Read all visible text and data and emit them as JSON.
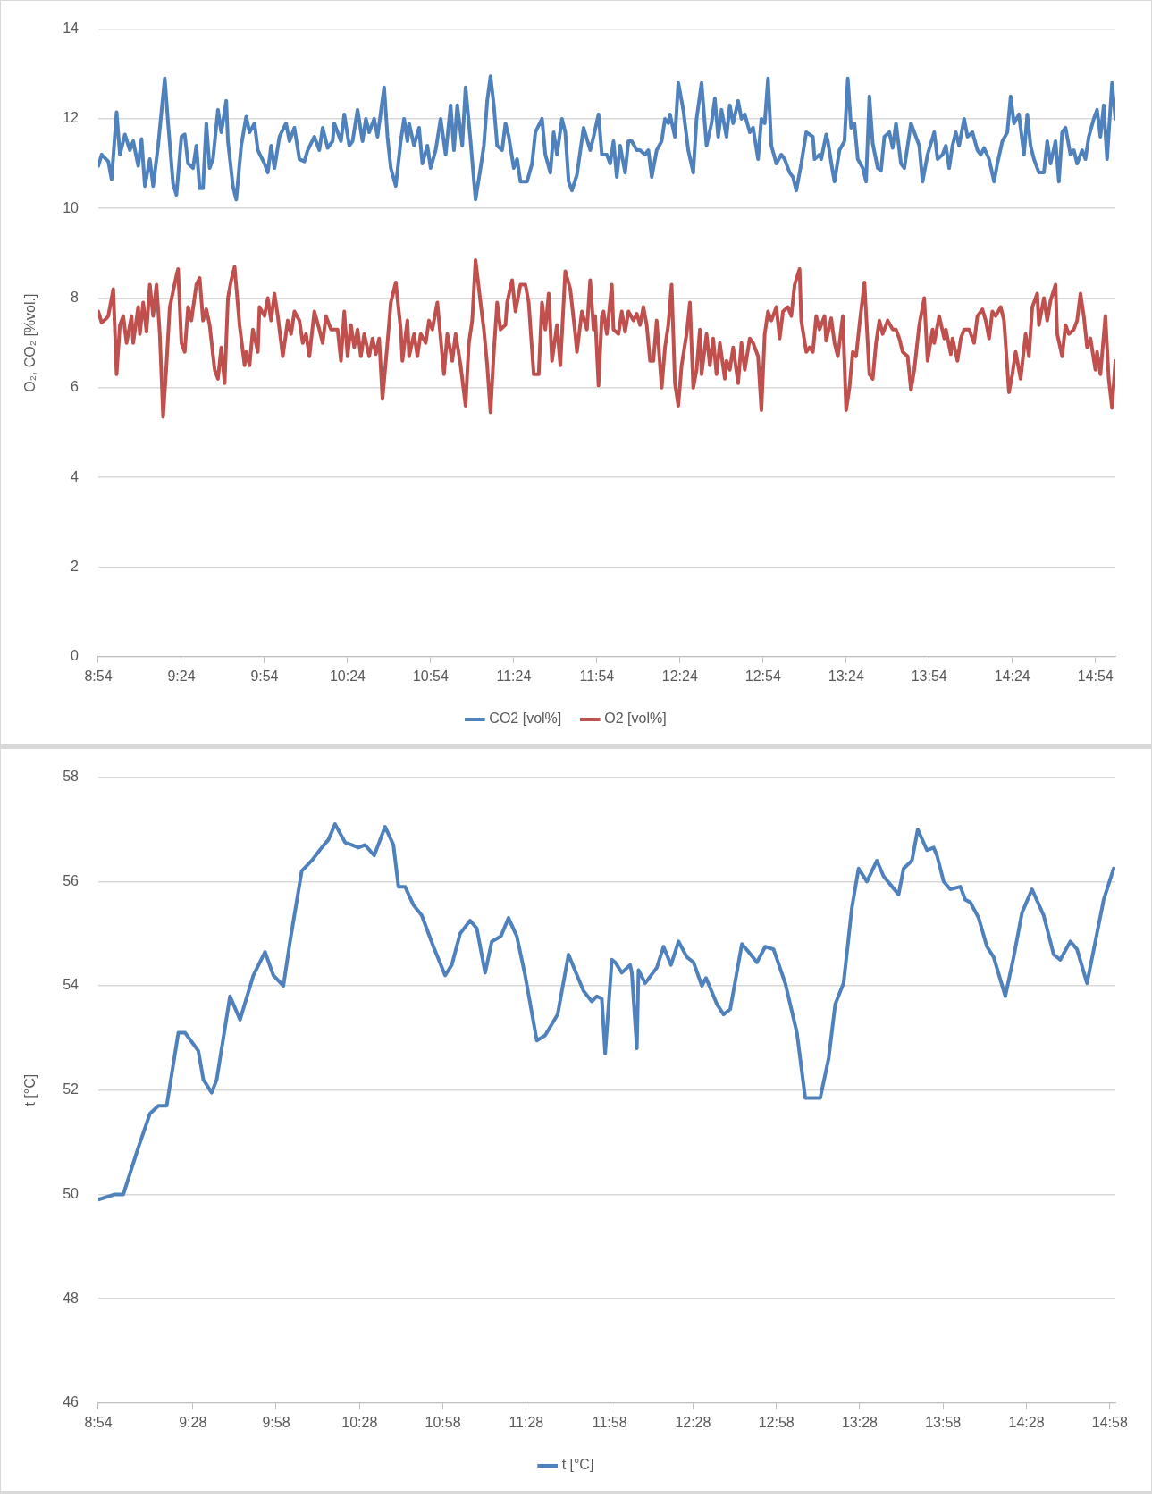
{
  "chart_data": [
    {
      "type": "line",
      "ylabel": "O₂, CO₂ [%vol.]",
      "xlim": [
        8.9,
        15.02
      ],
      "ylim": [
        0,
        14
      ],
      "yticks": [
        0,
        2,
        4,
        6,
        8,
        10,
        12,
        14
      ],
      "xticks": [
        {
          "value": 8.9,
          "label": "8:54"
        },
        {
          "value": 9.4,
          "label": "9:24"
        },
        {
          "value": 9.9,
          "label": "9:54"
        },
        {
          "value": 10.4,
          "label": "10:24"
        },
        {
          "value": 10.9,
          "label": "10:54"
        },
        {
          "value": 11.4,
          "label": "11:24"
        },
        {
          "value": 11.9,
          "label": "11:54"
        },
        {
          "value": 12.4,
          "label": "12:24"
        },
        {
          "value": 12.9,
          "label": "12:54"
        },
        {
          "value": 13.4,
          "label": "13:24"
        },
        {
          "value": 13.9,
          "label": "13:54"
        },
        {
          "value": 14.4,
          "label": "14:24"
        },
        {
          "value": 14.9,
          "label": "14:54"
        }
      ],
      "grid": "y",
      "legend": "bottom",
      "marker": "none",
      "line_style": "solid",
      "series": [
        {
          "name": "CO2 [vol%]",
          "color": "#4f81bd",
          "x": [
            8.9,
            8.92,
            8.96,
            8.98,
            9.01,
            9.03,
            9.06,
            9.09,
            9.11,
            9.14,
            9.16,
            9.18,
            9.21,
            9.23,
            9.26,
            9.3,
            9.32,
            9.35,
            9.37,
            9.4,
            9.42,
            9.44,
            9.47,
            9.49,
            9.51,
            9.53,
            9.55,
            9.57,
            9.59,
            9.62,
            9.64,
            9.67,
            9.68,
            9.71,
            9.73,
            9.76,
            9.79,
            9.81,
            9.84,
            9.86,
            9.9,
            9.92,
            9.94,
            9.96,
            9.99,
            10.03,
            10.05,
            10.08,
            10.11,
            10.14,
            10.16,
            10.2,
            10.23,
            10.25,
            10.28,
            10.31,
            10.32,
            10.36,
            10.38,
            10.41,
            10.43,
            10.46,
            10.49,
            10.51,
            10.53,
            10.56,
            10.58,
            10.62,
            10.64,
            10.66,
            10.69,
            10.72,
            10.74,
            10.76,
            10.77,
            10.8,
            10.83,
            10.85,
            10.88,
            10.9,
            10.93,
            10.96,
            10.99,
            11.02,
            11.04,
            11.06,
            11.09,
            11.11,
            11.14,
            11.17,
            11.2,
            11.22,
            11.24,
            11.26,
            11.28,
            11.3,
            11.33,
            11.35,
            11.37,
            11.4,
            11.42,
            11.44,
            11.48,
            11.51,
            11.53,
            11.57,
            11.59,
            11.62,
            11.64,
            11.66,
            11.69,
            11.71,
            11.73,
            11.75,
            11.78,
            11.82,
            11.84,
            11.86,
            11.88,
            11.91,
            11.93,
            11.96,
            11.98,
            12.0,
            12.02,
            12.04,
            12.07,
            12.09,
            12.11,
            12.14,
            12.16,
            12.19,
            12.21,
            12.23,
            12.26,
            12.29,
            12.31,
            12.33,
            12.34,
            12.37,
            12.39,
            12.42,
            12.45,
            12.48,
            12.5,
            12.53,
            12.56,
            12.59,
            12.61,
            12.63,
            12.65,
            12.68,
            12.7,
            12.72,
            12.75,
            12.77,
            12.79,
            12.82,
            12.84,
            12.87,
            12.89,
            12.91,
            12.93,
            12.95,
            12.98,
            13.01,
            13.03,
            13.06,
            13.08,
            13.1,
            13.13,
            13.16,
            13.2,
            13.21,
            13.24,
            13.25,
            13.28,
            13.29,
            13.32,
            13.33,
            13.36,
            13.39,
            13.41,
            13.43,
            13.45,
            13.47,
            13.5,
            13.52,
            13.54,
            13.56,
            13.59,
            13.61,
            13.63,
            13.66,
            13.68,
            13.7,
            13.73,
            13.75,
            13.77,
            13.79,
            13.81,
            13.84,
            13.86,
            13.89,
            13.93,
            13.95,
            13.98,
            14.0,
            14.02,
            14.04,
            14.06,
            14.08,
            14.11,
            14.13,
            14.16,
            14.19,
            14.21,
            14.23,
            14.26,
            14.29,
            14.31,
            14.34,
            14.37,
            14.39,
            14.41,
            14.44,
            14.47,
            14.49,
            14.51,
            14.53,
            14.56,
            14.59,
            14.61,
            14.63,
            14.66,
            14.68,
            14.7,
            14.72,
            14.75,
            14.77,
            14.79,
            14.82,
            14.84,
            14.86,
            14.89,
            14.91,
            14.93,
            14.95,
            14.97,
            15.0,
            15.02
          ],
          "values": [
            10.95,
            11.2,
            11.05,
            10.65,
            12.15,
            11.2,
            11.65,
            11.3,
            11.5,
            10.95,
            11.55,
            10.5,
            11.1,
            10.5,
            11.4,
            12.9,
            11.9,
            10.55,
            10.3,
            11.6,
            11.65,
            11.0,
            10.9,
            11.4,
            10.45,
            10.45,
            11.9,
            10.9,
            11.1,
            12.2,
            11.7,
            12.4,
            11.5,
            10.5,
            10.2,
            11.4,
            12.05,
            11.7,
            11.9,
            11.3,
            11.0,
            10.8,
            11.4,
            10.9,
            11.6,
            11.9,
            11.5,
            11.8,
            11.1,
            11.05,
            11.3,
            11.6,
            11.3,
            11.8,
            11.35,
            11.5,
            11.9,
            11.5,
            12.1,
            11.4,
            11.5,
            12.2,
            11.5,
            12.0,
            11.7,
            12.0,
            11.6,
            12.7,
            11.6,
            10.9,
            10.5,
            11.5,
            12.0,
            11.5,
            11.9,
            11.4,
            11.8,
            11.0,
            11.4,
            10.9,
            11.3,
            12.0,
            11.2,
            12.3,
            11.3,
            12.3,
            11.4,
            12.7,
            11.5,
            10.2,
            10.9,
            11.4,
            12.4,
            12.95,
            12.3,
            11.4,
            11.3,
            11.9,
            11.6,
            10.9,
            11.1,
            10.6,
            10.6,
            11.0,
            11.7,
            12.0,
            11.2,
            10.8,
            11.7,
            11.2,
            12.0,
            11.7,
            10.6,
            10.4,
            10.75,
            11.8,
            11.55,
            11.3,
            11.6,
            12.1,
            11.2,
            11.2,
            11.0,
            11.5,
            10.7,
            11.4,
            10.8,
            11.5,
            11.5,
            11.3,
            11.3,
            11.2,
            11.3,
            10.7,
            11.3,
            11.5,
            12.0,
            11.9,
            12.1,
            11.6,
            12.8,
            12.2,
            11.3,
            10.8,
            12.0,
            12.8,
            11.4,
            11.9,
            12.45,
            11.6,
            12.2,
            11.6,
            12.3,
            11.9,
            12.4,
            12.0,
            12.1,
            11.7,
            11.8,
            11.1,
            12.0,
            11.9,
            12.9,
            11.4,
            11.0,
            11.2,
            11.1,
            10.8,
            10.7,
            10.4,
            11.0,
            11.7,
            11.6,
            11.1,
            11.2,
            11.1,
            11.65,
            11.5,
            10.8,
            10.6,
            11.3,
            11.5,
            12.9,
            11.8,
            11.9,
            11.1,
            10.9,
            10.6,
            12.5,
            11.45,
            10.9,
            10.85,
            11.6,
            11.7,
            11.35,
            11.9,
            11.0,
            10.9,
            11.4,
            11.9,
            11.7,
            11.4,
            10.6,
            11.2,
            11.7,
            11.1,
            11.2,
            11.4,
            10.9,
            11.4,
            11.7,
            11.4,
            12.0,
            11.6,
            11.7,
            11.3,
            11.2,
            11.35,
            11.1,
            10.6,
            11.0,
            11.5,
            11.7,
            12.5,
            11.9,
            12.1,
            11.2,
            12.1,
            11.4,
            11.1,
            10.8,
            10.8,
            11.5,
            11.0,
            11.5,
            10.6,
            11.7,
            11.8,
            11.2,
            11.3,
            11.0,
            11.3,
            11.1,
            11.6,
            12.0,
            12.2,
            11.6,
            12.3,
            11.1,
            12.8,
            12.0
          ]
        },
        {
          "name": "O2 [vol%]",
          "color": "#c0504d",
          "x": [
            8.9,
            8.92,
            8.95,
            8.96,
            8.99,
            9.01,
            9.03,
            9.05,
            9.07,
            9.1,
            9.11,
            9.14,
            9.15,
            9.17,
            9.19,
            9.21,
            9.23,
            9.25,
            9.27,
            9.29,
            9.31,
            9.33,
            9.37,
            9.38,
            9.4,
            9.42,
            9.44,
            9.46,
            9.49,
            9.51,
            9.53,
            9.55,
            9.57,
            9.6,
            9.62,
            9.64,
            9.66,
            9.68,
            9.7,
            9.72,
            9.75,
            9.78,
            9.79,
            9.81,
            9.83,
            9.86,
            9.87,
            9.9,
            9.92,
            9.94,
            9.96,
            9.98,
            10.01,
            10.04,
            10.06,
            10.08,
            10.11,
            10.13,
            10.15,
            10.17,
            10.2,
            10.23,
            10.25,
            10.27,
            10.3,
            10.34,
            10.36,
            10.38,
            10.4,
            10.42,
            10.44,
            10.46,
            10.48,
            10.5,
            10.53,
            10.55,
            10.57,
            10.59,
            10.61,
            10.64,
            10.66,
            10.69,
            10.72,
            10.73,
            10.76,
            10.77,
            10.8,
            10.82,
            10.84,
            10.87,
            10.89,
            10.91,
            10.94,
            10.96,
            10.98,
            11.0,
            11.03,
            11.05,
            11.08,
            11.11,
            11.13,
            11.15,
            11.17,
            11.2,
            11.22,
            11.24,
            11.26,
            11.28,
            11.3,
            11.32,
            11.35,
            11.36,
            11.39,
            11.41,
            11.44,
            11.47,
            11.49,
            11.52,
            11.55,
            11.57,
            11.59,
            11.61,
            11.63,
            11.66,
            11.68,
            11.71,
            11.74,
            11.77,
            11.78,
            11.81,
            11.84,
            11.86,
            11.88,
            11.89,
            11.91,
            11.93,
            11.94,
            11.96,
            11.99,
            12.0,
            12.03,
            12.05,
            12.07,
            12.09,
            12.12,
            12.14,
            12.16,
            12.18,
            12.2,
            12.22,
            12.24,
            12.26,
            12.29,
            12.31,
            12.33,
            12.35,
            12.37,
            12.39,
            12.41,
            12.44,
            12.46,
            12.48,
            12.5,
            12.52,
            12.53,
            12.56,
            12.58,
            12.6,
            12.62,
            12.64,
            12.67,
            12.68,
            12.7,
            12.72,
            12.75,
            12.77,
            12.79,
            12.82,
            12.84,
            12.87,
            12.89,
            12.91,
            12.93,
            12.95,
            12.98,
            13.0,
            13.02,
            13.05,
            13.07,
            13.09,
            13.12,
            13.13,
            13.16,
            13.18,
            13.2,
            13.22,
            13.24,
            13.27,
            13.28,
            13.31,
            13.33,
            13.35,
            13.38,
            13.4,
            13.42,
            13.44,
            13.46,
            13.48,
            13.51,
            13.54,
            13.56,
            13.58,
            13.6,
            13.62,
            13.65,
            13.68,
            13.7,
            13.72,
            13.74,
            13.77,
            13.79,
            13.81,
            13.84,
            13.87,
            13.89,
            13.92,
            13.93,
            13.96,
            13.99,
            14.0,
            14.03,
            14.04,
            14.07,
            14.09,
            14.11,
            14.14,
            14.17,
            14.19,
            14.22,
            14.24,
            14.26,
            14.28,
            14.3,
            14.33,
            14.35,
            14.38,
            14.4,
            14.42,
            14.45,
            14.48,
            14.5,
            14.52,
            14.55,
            14.56,
            14.59,
            14.61,
            14.63,
            14.66,
            14.67,
            14.7,
            14.72,
            14.74,
            14.77,
            14.79,
            14.81,
            14.83,
            14.85,
            14.87,
            14.9,
            14.91,
            14.93,
            14.96,
            14.98,
            15.0,
            15.02
          ],
          "values": [
            7.7,
            7.45,
            7.55,
            7.6,
            8.2,
            6.3,
            7.4,
            7.6,
            7.0,
            7.6,
            7.0,
            7.8,
            7.2,
            7.9,
            7.25,
            8.3,
            7.6,
            8.3,
            7.2,
            5.35,
            6.5,
            7.8,
            8.5,
            8.65,
            7.0,
            6.8,
            7.8,
            7.5,
            8.3,
            8.45,
            7.5,
            7.75,
            7.4,
            6.4,
            6.2,
            6.9,
            6.1,
            8.0,
            8.4,
            8.7,
            7.4,
            6.5,
            6.8,
            6.5,
            7.3,
            6.8,
            7.8,
            7.6,
            8.0,
            7.5,
            8.1,
            7.6,
            6.7,
            7.5,
            7.2,
            7.7,
            7.5,
            7.0,
            7.2,
            6.7,
            7.7,
            7.3,
            7.0,
            7.6,
            7.3,
            7.3,
            6.6,
            7.7,
            6.7,
            7.4,
            6.9,
            7.3,
            6.7,
            7.2,
            6.7,
            7.1,
            6.75,
            7.1,
            5.75,
            7.0,
            7.9,
            8.35,
            7.3,
            6.6,
            7.5,
            6.7,
            7.2,
            6.7,
            7.2,
            7.0,
            7.5,
            7.3,
            7.9,
            7.1,
            6.3,
            7.2,
            6.6,
            7.2,
            6.5,
            5.6,
            7.0,
            7.5,
            8.85,
            7.9,
            7.3,
            6.5,
            5.45,
            6.8,
            7.9,
            7.3,
            7.4,
            7.9,
            8.4,
            7.7,
            8.3,
            8.3,
            7.9,
            6.3,
            6.3,
            7.9,
            7.3,
            8.1,
            6.6,
            7.4,
            6.5,
            8.6,
            8.2,
            7.2,
            6.8,
            7.7,
            7.3,
            8.4,
            7.3,
            7.6,
            6.05,
            7.6,
            7.7,
            7.2,
            8.3,
            7.3,
            7.2,
            7.7,
            7.25,
            7.7,
            7.5,
            7.65,
            7.4,
            7.8,
            7.4,
            6.6,
            6.6,
            7.5,
            6.0,
            6.9,
            7.4,
            8.3,
            6.1,
            5.6,
            6.5,
            7.2,
            7.9,
            6.0,
            6.4,
            7.3,
            6.3,
            7.2,
            6.5,
            7.1,
            6.3,
            7.0,
            6.2,
            6.6,
            6.4,
            6.9,
            6.1,
            7.0,
            6.4,
            7.1,
            7.0,
            6.7,
            5.5,
            7.2,
            7.7,
            7.5,
            7.8,
            7.1,
            7.7,
            7.8,
            7.6,
            8.3,
            8.65,
            7.5,
            6.8,
            6.9,
            6.8,
            7.6,
            7.3,
            7.6,
            7.05,
            7.55,
            7.0,
            6.7,
            7.6,
            5.5,
            6.0,
            6.8,
            6.7,
            7.4,
            8.35,
            6.3,
            6.2,
            7.0,
            7.5,
            7.2,
            7.5,
            7.3,
            7.3,
            7.1,
            6.8,
            6.7,
            5.95,
            6.4,
            7.4,
            8.0,
            6.6,
            7.3,
            7.0,
            7.6,
            7.1,
            7.3,
            6.75,
            7.1,
            6.6,
            7.1,
            7.3,
            7.3,
            7.0,
            7.6,
            7.75,
            7.5,
            7.1,
            7.7,
            7.6,
            7.8,
            7.5,
            5.9,
            6.3,
            6.8,
            6.2,
            7.2,
            6.7,
            7.8,
            8.1,
            7.4,
            8.0,
            7.5,
            7.95,
            8.3,
            7.2,
            6.7,
            7.4,
            7.2,
            7.3,
            7.5,
            8.1,
            7.6,
            6.9,
            7.1,
            6.4,
            6.8,
            6.3,
            7.6,
            6.2,
            5.55,
            6.6
          ]
        }
      ]
    },
    {
      "type": "line",
      "ylabel": "t [°C]",
      "xlim": [
        8.9,
        15.0
      ],
      "ylim": [
        46,
        58
      ],
      "yticks": [
        46,
        48,
        50,
        52,
        54,
        56,
        58
      ],
      "xticks": [
        {
          "value": 8.9,
          "label": "8:54"
        },
        {
          "value": 9.4667,
          "label": "9:28"
        },
        {
          "value": 9.9667,
          "label": "9:58"
        },
        {
          "value": 10.4667,
          "label": "10:28"
        },
        {
          "value": 10.9667,
          "label": "10:58"
        },
        {
          "value": 11.4667,
          "label": "11:28"
        },
        {
          "value": 11.9667,
          "label": "11:58"
        },
        {
          "value": 12.4667,
          "label": "12:28"
        },
        {
          "value": 12.9667,
          "label": "12:58"
        },
        {
          "value": 13.4667,
          "label": "13:28"
        },
        {
          "value": 13.9667,
          "label": "13:58"
        },
        {
          "value": 14.4667,
          "label": "14:28"
        },
        {
          "value": 14.9667,
          "label": "14:58"
        }
      ],
      "grid": "y",
      "legend": "bottom",
      "marker": "none",
      "line_style": "solid",
      "series": [
        {
          "name": "t [°C]",
          "color": "#4f81bd",
          "x": [
            8.9,
            9.0,
            9.05,
            9.07,
            9.1,
            9.14,
            9.21,
            9.26,
            9.31,
            9.38,
            9.42,
            9.5,
            9.53,
            9.58,
            9.61,
            9.69,
            9.75,
            9.83,
            9.9,
            9.95,
            10.01,
            10.05,
            10.12,
            10.18,
            10.24,
            10.28,
            10.32,
            10.38,
            10.42,
            10.46,
            10.5,
            10.555,
            10.62,
            10.67,
            10.7,
            10.74,
            10.79,
            10.84,
            10.91,
            10.98,
            11.02,
            11.07,
            11.13,
            11.17,
            11.22,
            11.26,
            11.315,
            11.36,
            11.41,
            11.46,
            11.53,
            11.58,
            11.655,
            11.72,
            11.81,
            11.86,
            11.89,
            11.92,
            11.94,
            11.98,
            12.0,
            12.04,
            12.09,
            12.1,
            12.13,
            12.14,
            12.18,
            12.25,
            12.29,
            12.335,
            12.38,
            12.43,
            12.47,
            12.52,
            12.545,
            12.61,
            12.65,
            12.69,
            12.76,
            12.8,
            12.85,
            12.9,
            12.95,
            13.02,
            13.09,
            13.14,
            13.23,
            13.28,
            13.32,
            13.37,
            13.42,
            13.46,
            13.51,
            13.57,
            13.61,
            13.7,
            13.73,
            13.78,
            13.815,
            13.87,
            13.91,
            13.93,
            13.97,
            14.01,
            14.07,
            14.1,
            14.13,
            14.18,
            14.23,
            14.27,
            14.34,
            14.39,
            14.44,
            14.5,
            14.57,
            14.63,
            14.67,
            14.73,
            14.77,
            14.83,
            14.93,
            14.99
          ],
          "values": [
            49.9,
            50.0,
            50.0,
            50.2,
            50.5,
            50.9,
            51.55,
            51.7,
            51.7,
            53.1,
            53.1,
            52.75,
            52.2,
            51.95,
            52.2,
            53.8,
            53.35,
            54.2,
            54.65,
            54.2,
            54.0,
            54.85,
            56.2,
            56.4,
            56.65,
            56.8,
            57.1,
            56.75,
            56.7,
            56.65,
            56.7,
            56.5,
            57.05,
            56.7,
            55.9,
            55.9,
            55.55,
            55.35,
            54.75,
            54.2,
            54.4,
            55.0,
            55.25,
            55.1,
            54.25,
            54.85,
            54.95,
            55.3,
            54.95,
            54.2,
            52.95,
            53.05,
            53.45,
            54.6,
            53.9,
            53.7,
            53.8,
            53.75,
            52.7,
            54.5,
            54.45,
            54.25,
            54.4,
            54.25,
            52.8,
            54.3,
            54.05,
            54.35,
            54.75,
            54.4,
            54.85,
            54.55,
            54.45,
            54.0,
            54.15,
            53.65,
            53.45,
            53.55,
            54.8,
            54.65,
            54.45,
            54.75,
            54.7,
            54.05,
            53.1,
            51.85,
            51.85,
            52.6,
            53.65,
            54.05,
            55.5,
            56.25,
            56.0,
            56.4,
            56.1,
            55.75,
            56.25,
            56.4,
            57.0,
            56.6,
            56.65,
            56.5,
            56.0,
            55.85,
            55.9,
            55.65,
            55.6,
            55.3,
            54.75,
            54.55,
            53.8,
            54.55,
            55.4,
            55.85,
            55.35,
            54.6,
            54.5,
            54.85,
            54.7,
            54.05,
            55.65,
            56.25
          ]
        }
      ]
    }
  ]
}
